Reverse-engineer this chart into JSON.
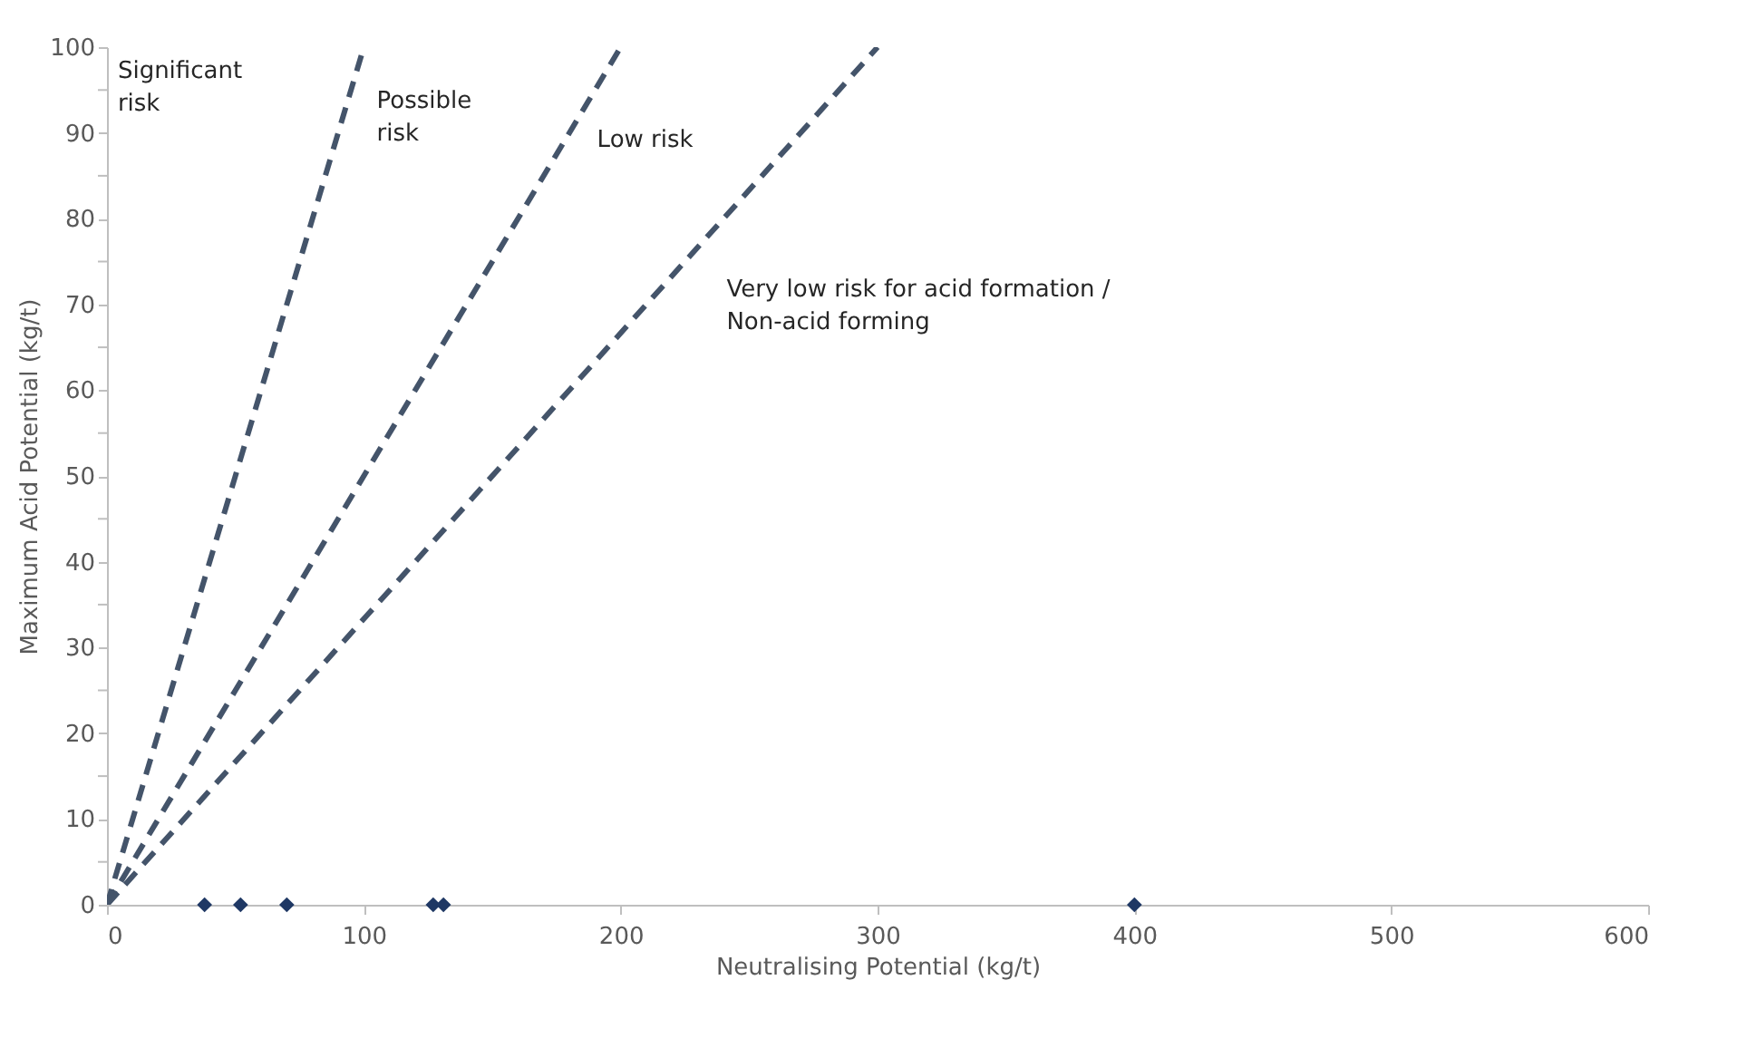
{
  "chart_data": {
    "type": "scatter",
    "xlabel": "Neutralising Potential (kg/t)",
    "ylabel": "Maximum Acid Potential (kg/t)",
    "xlim": [
      0,
      600
    ],
    "xticks": [
      0,
      100,
      200,
      300,
      400,
      500,
      600
    ],
    "ylim": [
      0,
      100
    ],
    "yticks": [
      0,
      {
        "value": 5,
        "label": null
      },
      10,
      {
        "value": 15,
        "label": null
      },
      20,
      {
        "value": 25,
        "label": null
      },
      30,
      {
        "value": 35,
        "label": null
      },
      40,
      {
        "value": 45,
        "label": null
      },
      50,
      {
        "value": 55,
        "label": null
      },
      60,
      {
        "value": 65,
        "label": null
      },
      70,
      {
        "value": 75,
        "label": null
      },
      80,
      {
        "value": 85,
        "label": null
      },
      90,
      {
        "value": 95,
        "label": null
      },
      100
    ],
    "grid": false,
    "legend": false,
    "series": [
      {
        "type": "line",
        "x": [
          0,
          100
        ],
        "values": [
          0,
          100
        ],
        "color": "#44546a",
        "line_style": "dashed",
        "marker": "none"
      },
      {
        "type": "line",
        "x": [
          0,
          200
        ],
        "values": [
          0,
          100
        ],
        "color": "#44546a",
        "line_style": "dashed",
        "marker": "none"
      },
      {
        "type": "line",
        "x": [
          0,
          300
        ],
        "values": [
          0,
          100
        ],
        "color": "#44546a",
        "line_style": "dashed",
        "marker": "none"
      },
      {
        "x": [
          38,
          52,
          70,
          127,
          131,
          400
        ],
        "values": [
          0,
          0,
          0,
          0,
          0,
          0
        ],
        "color": "#1f3864",
        "marker": "diamond"
      }
    ],
    "annotations": [
      "Significant\nrisk",
      "Possible\nrisk",
      "Low risk",
      "Very low risk for acid formation /\nNon-acid forming"
    ]
  }
}
